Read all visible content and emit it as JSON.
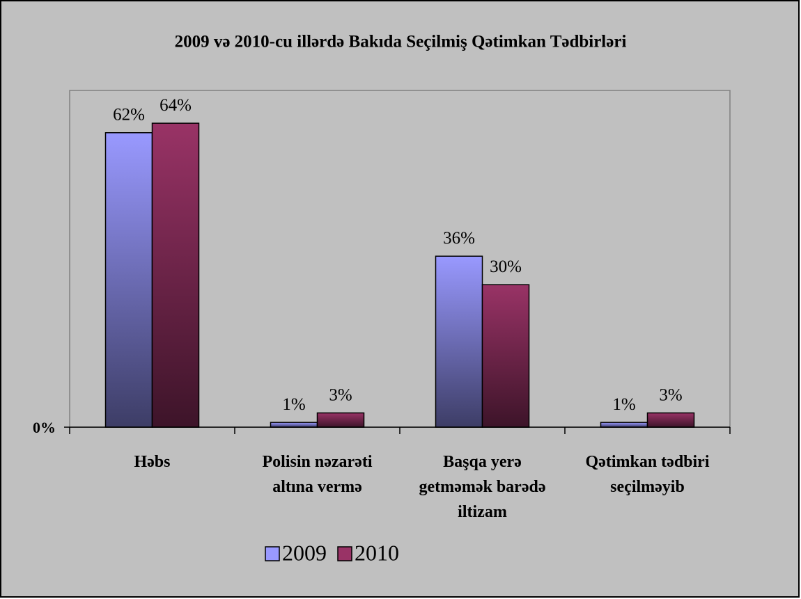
{
  "chart_data": {
    "type": "bar",
    "title": "2009 və 2010-cu illərdə Bakıda Seçilmiş Qətimkan Tədbirləri",
    "categories": [
      "Həbs",
      "Polisin nəzarəti altına vermə",
      "Başqa yerə getməmək barədə iltizam",
      "Qətimkan tədbiri seçilməyib"
    ],
    "series": [
      {
        "name": "2009",
        "color": "#9999ff",
        "values": [
          62,
          1,
          36,
          1
        ],
        "value_labels": [
          "62%",
          "1%",
          "36%",
          "1%"
        ]
      },
      {
        "name": "2010",
        "color": "#993366",
        "values": [
          64,
          3,
          30,
          3
        ],
        "value_labels": [
          "64%",
          "3%",
          "30%",
          "3%"
        ]
      }
    ],
    "ylim": [
      0,
      70.9
    ],
    "yticks": [
      {
        "value": 0,
        "label": "0%"
      }
    ],
    "legend": "bottom"
  }
}
